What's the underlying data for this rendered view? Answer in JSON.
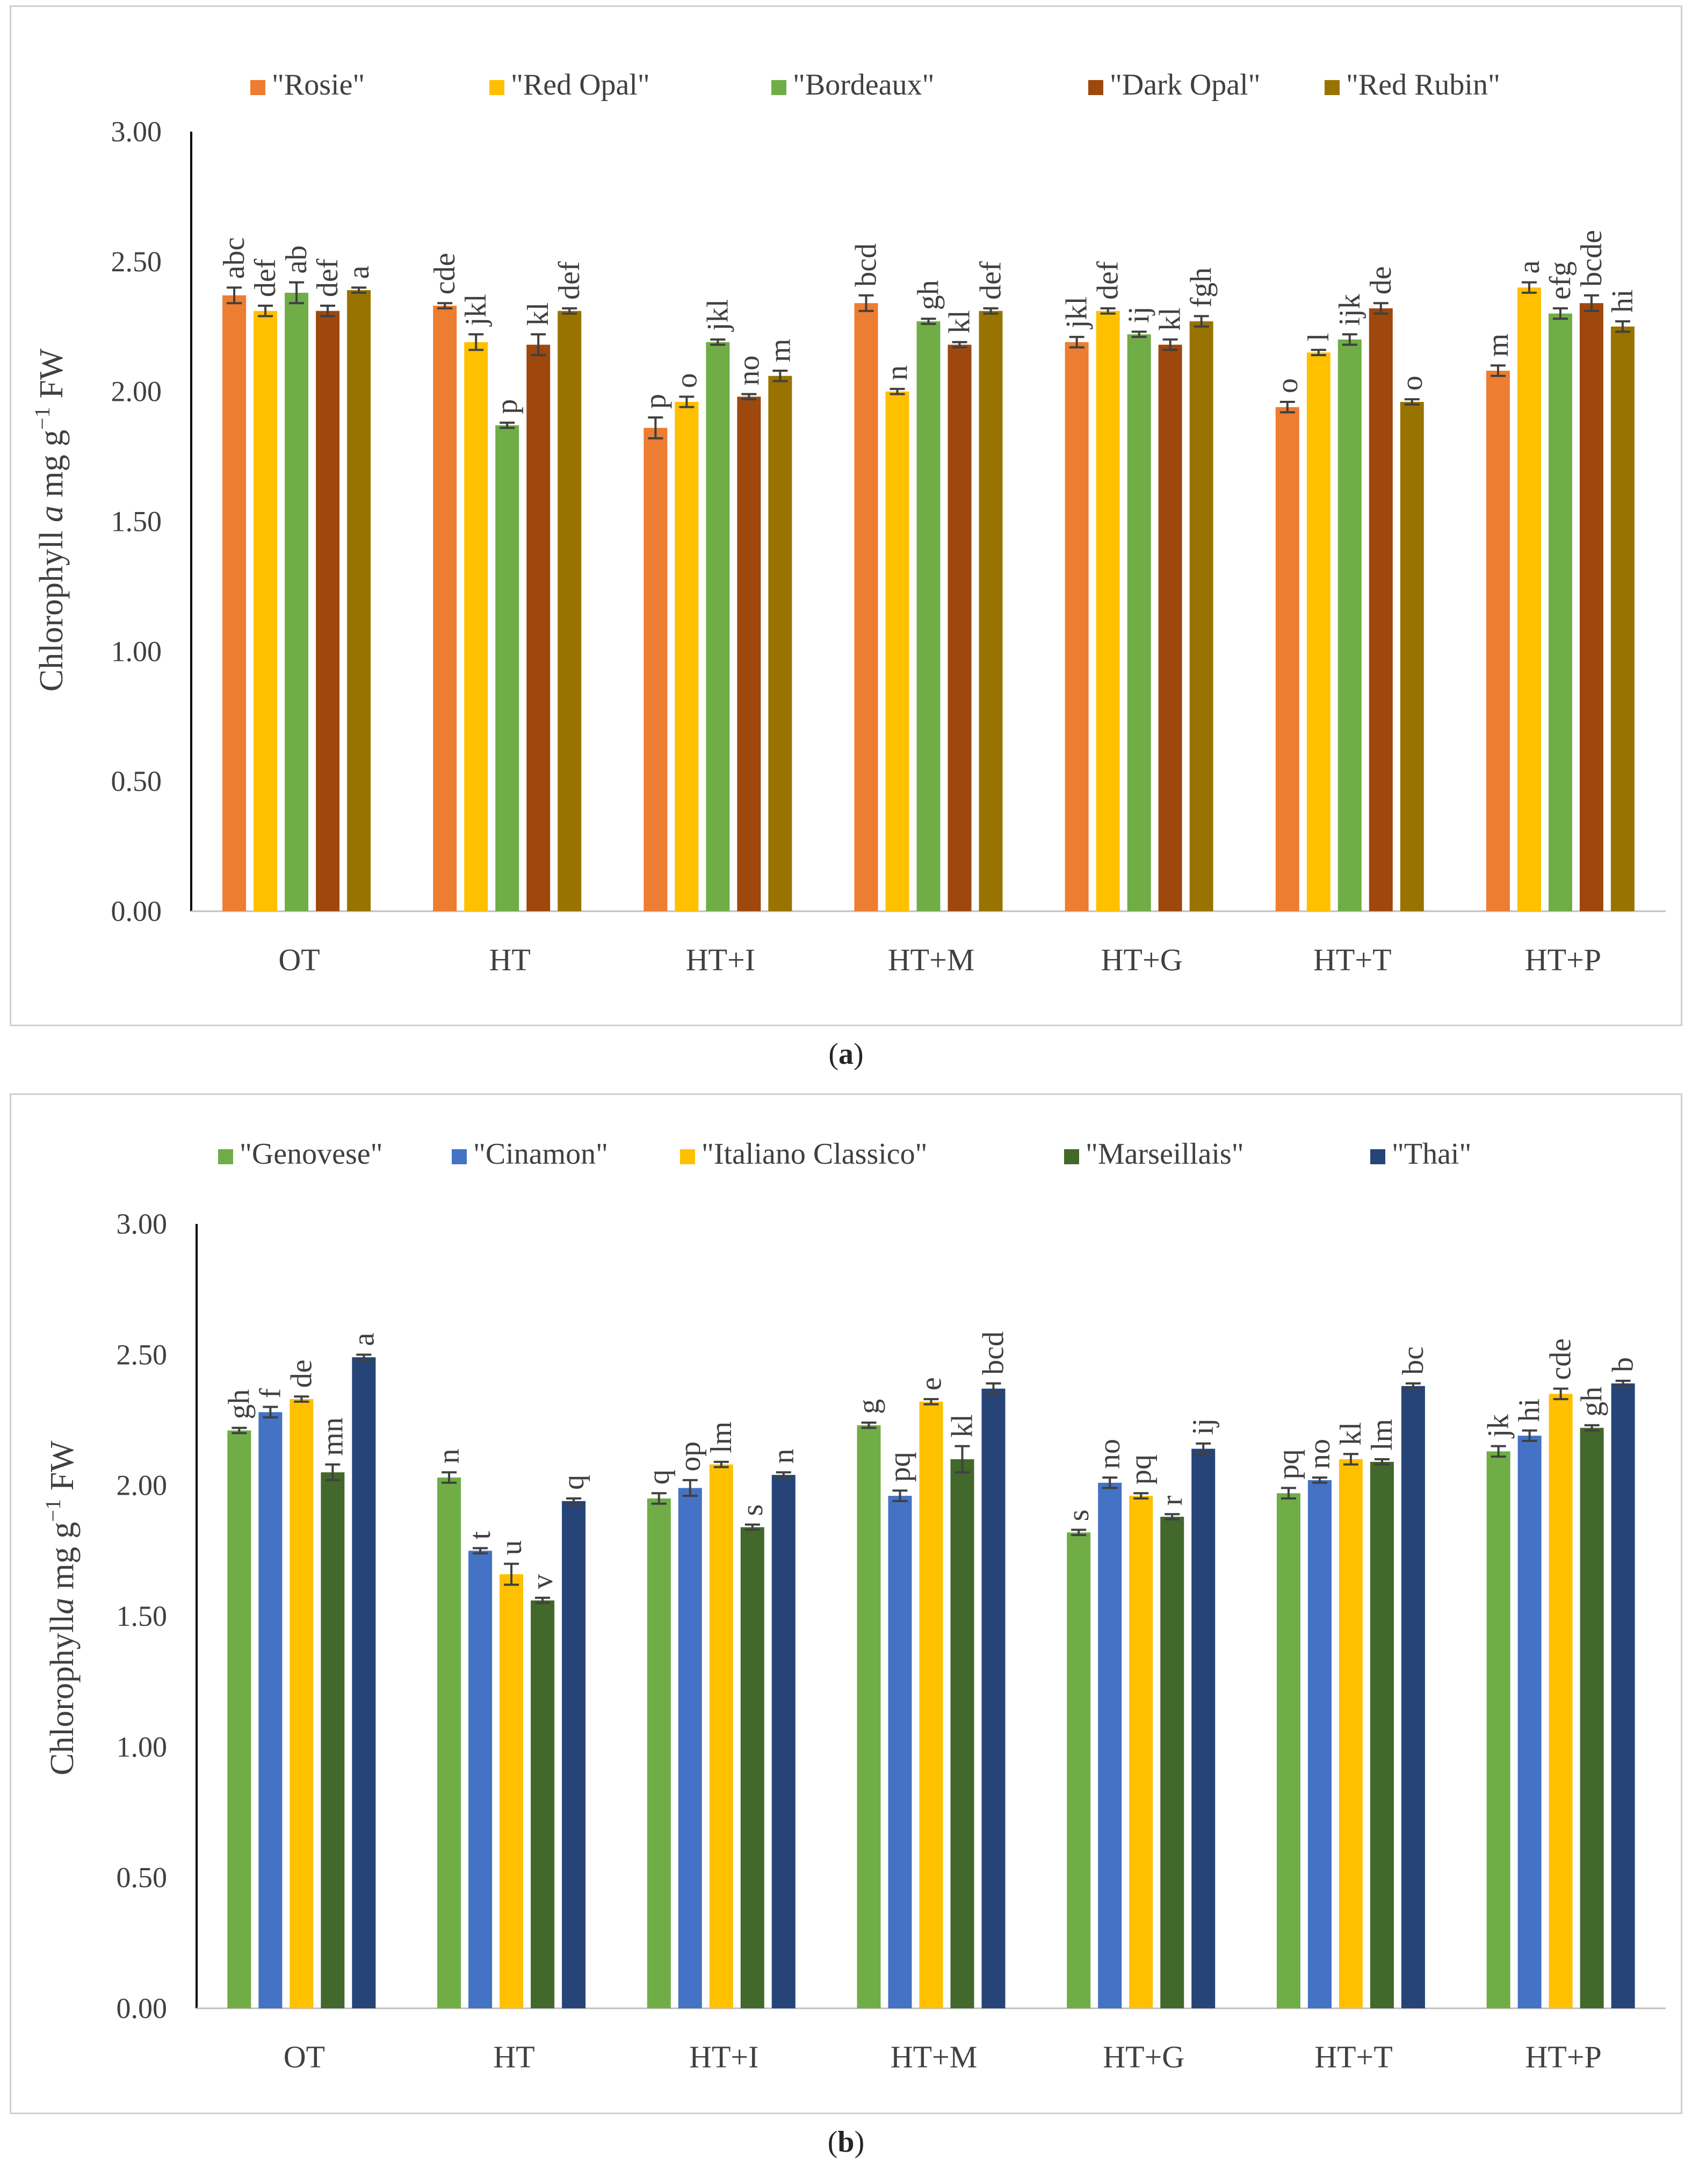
{
  "chart_data": [
    {
      "id": "a",
      "type": "bar",
      "caption_letter": "a",
      "ylabel_parts": [
        "Chlorophyll ",
        "a",
        " mg g",
        "−1",
        " FW"
      ],
      "ylim": [
        0,
        3
      ],
      "yticks": [
        "0.00",
        "0.50",
        "1.00",
        "1.50",
        "2.00",
        "2.50",
        "3.00"
      ],
      "ytick_values": [
        0,
        0.5,
        1,
        1.5,
        2,
        2.5,
        3
      ],
      "categories": [
        "OT",
        "HT",
        "HT+I",
        "HT+M",
        "HT+G",
        "HT+T",
        "HT+P"
      ],
      "series": [
        {
          "name": "\"Rosie\"",
          "color": "#ed7d31",
          "values": [
            2.37,
            2.33,
            1.86,
            2.34,
            2.19,
            1.94,
            2.08
          ],
          "errors": [
            0.03,
            0.01,
            0.04,
            0.03,
            0.02,
            0.02,
            0.02
          ],
          "letters": [
            "abc",
            "cde",
            "p",
            "bcd",
            "jkl",
            "o",
            "m"
          ]
        },
        {
          "name": "\"Red Opal\"",
          "color": "#ffc000",
          "values": [
            2.31,
            2.19,
            1.96,
            2.0,
            2.31,
            2.15,
            2.4
          ],
          "errors": [
            0.02,
            0.03,
            0.02,
            0.01,
            0.01,
            0.01,
            0.02
          ],
          "letters": [
            "def",
            "jkl",
            "o",
            "n",
            "def",
            "l",
            "a"
          ]
        },
        {
          "name": "\"Bordeaux\"",
          "color": "#70ad47",
          "values": [
            2.38,
            1.87,
            2.19,
            2.27,
            2.22,
            2.2,
            2.3
          ],
          "errors": [
            0.04,
            0.01,
            0.01,
            0.01,
            0.01,
            0.02,
            0.02
          ],
          "letters": [
            "ab",
            "p",
            "jkl",
            "gh",
            "ij",
            "ijk",
            "efg"
          ]
        },
        {
          "name": "\"Dark Opal\"",
          "color": "#9e480e",
          "values": [
            2.31,
            2.18,
            1.98,
            2.18,
            2.18,
            2.32,
            2.34
          ],
          "errors": [
            0.02,
            0.04,
            0.01,
            0.01,
            0.02,
            0.02,
            0.03
          ],
          "letters": [
            "def",
            "kl",
            "no",
            "kl",
            "kl",
            "de",
            "bcde"
          ]
        },
        {
          "name": "\"Red Rubin\"",
          "color": "#997300",
          "values": [
            2.39,
            2.31,
            2.06,
            2.31,
            2.27,
            1.96,
            2.25
          ],
          "errors": [
            0.01,
            0.01,
            0.02,
            0.01,
            0.02,
            0.01,
            0.02
          ],
          "letters": [
            "a",
            "def",
            "m",
            "def",
            "fgh",
            "o",
            "hi"
          ]
        }
      ]
    },
    {
      "id": "b",
      "type": "bar",
      "caption_letter": "b",
      "ylabel_parts": [
        "Chlorophyll",
        "a",
        " mg g",
        "−1",
        " FW"
      ],
      "ylim": [
        0,
        3
      ],
      "yticks": [
        "0.00",
        "0.50",
        "1.00",
        "1.50",
        "2.00",
        "2.50",
        "3.00"
      ],
      "ytick_values": [
        0,
        0.5,
        1,
        1.5,
        2,
        2.5,
        3
      ],
      "categories": [
        "OT",
        "HT",
        "HT+I",
        "HT+M",
        "HT+G",
        "HT+T",
        "HT+P"
      ],
      "series": [
        {
          "name": "\"Genovese\"",
          "color": "#70ad47",
          "values": [
            2.21,
            2.03,
            1.95,
            2.23,
            1.82,
            1.97,
            2.13
          ],
          "errors": [
            0.01,
            0.02,
            0.02,
            0.01,
            0.01,
            0.02,
            0.02
          ],
          "letters": [
            "gh",
            "n",
            "q",
            "g",
            "s",
            "pq",
            "jk"
          ]
        },
        {
          "name": "\"Cinamon\"",
          "color": "#4472c4",
          "values": [
            2.28,
            1.75,
            1.99,
            1.96,
            2.01,
            2.02,
            2.19
          ],
          "errors": [
            0.02,
            0.01,
            0.03,
            0.02,
            0.02,
            0.01,
            0.02
          ],
          "letters": [
            "f",
            "t",
            "op",
            "pq",
            "no",
            "no",
            "hi"
          ]
        },
        {
          "name": "\"Italiano Classico\"",
          "color": "#ffc000",
          "values": [
            2.33,
            1.66,
            2.08,
            2.32,
            1.96,
            2.1,
            2.35
          ],
          "errors": [
            0.01,
            0.04,
            0.01,
            0.01,
            0.01,
            0.02,
            0.02
          ],
          "letters": [
            "de",
            "u",
            "lm",
            "e",
            "pq",
            "kl",
            "cde"
          ]
        },
        {
          "name": "\"Marseillais\"",
          "color": "#43682b",
          "values": [
            2.05,
            1.56,
            1.84,
            2.1,
            1.88,
            2.09,
            2.22
          ],
          "errors": [
            0.03,
            0.01,
            0.01,
            0.05,
            0.01,
            0.01,
            0.01
          ],
          "letters": [
            "mn",
            "v",
            "s",
            "kl",
            "r",
            "lm",
            "gh"
          ]
        },
        {
          "name": "\"Thai\"",
          "color": "#264478",
          "values": [
            2.49,
            1.94,
            2.04,
            2.37,
            2.14,
            2.38,
            2.39
          ],
          "errors": [
            0.01,
            0.01,
            0.01,
            0.02,
            0.02,
            0.01,
            0.01
          ],
          "letters": [
            "a",
            "q",
            "n",
            "bcd",
            "ij",
            "bc",
            "b"
          ]
        }
      ]
    }
  ],
  "captions": {
    "a": "a",
    "b": "b"
  }
}
